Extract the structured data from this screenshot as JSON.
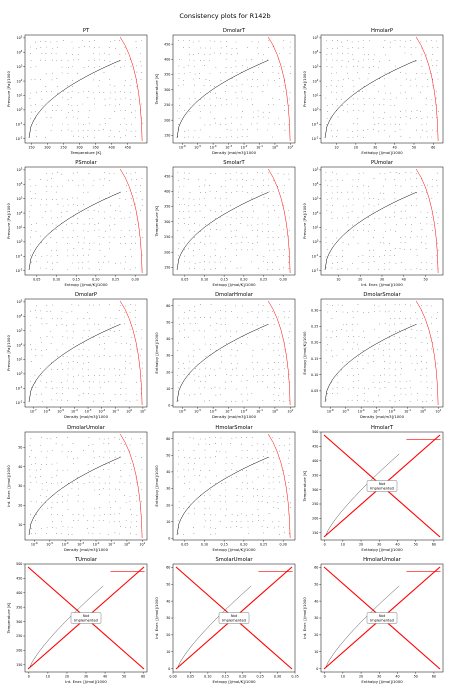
{
  "figure": {
    "suptitle": "Consistency plots for R142b"
  },
  "colors": {
    "curve": "#000000",
    "points": "#000000",
    "boundary": "#ff0000",
    "cross": "#ff0000",
    "frame": "#000000"
  },
  "chart_data": [
    {
      "id": "PT",
      "type": "scatter",
      "title": "PT",
      "xlabel": "Temperature [K]",
      "ylabel": "Pressure [Pa]/1000",
      "xlim": [
        130,
        510
      ],
      "ylim": [
        -2.3,
        5.2
      ],
      "yscale": "log",
      "xticks": [
        "150",
        "200",
        "250",
        "300",
        "350",
        "400",
        "450"
      ],
      "yticks": [
        "10^-2",
        "10^-1",
        "10^0",
        "10^1",
        "10^2",
        "10^3",
        "10^4",
        "10^5"
      ],
      "implemented": true
    },
    {
      "id": "DmolarT",
      "type": "scatter",
      "title": "DmolarT",
      "xlabel": "Density [mol/m3]/1000",
      "ylabel": "Temperature [K]",
      "xlim": [
        -6.6,
        1.3
      ],
      "ylim": [
        125,
        480
      ],
      "xscale": "log",
      "xticks": [
        "10^-6",
        "10^-5",
        "10^-4",
        "10^-3",
        "10^-2",
        "10^-1",
        "10^0",
        "10^1"
      ],
      "yticks": [
        "150",
        "200",
        "250",
        "300",
        "350",
        "400",
        "450"
      ],
      "implemented": true
    },
    {
      "id": "HmolarP",
      "type": "scatter",
      "title": "HmolarP",
      "xlabel": "Enthalpy [J/mol]/1000",
      "ylabel": "Pressure [Pa]/1000",
      "xlim": [
        2,
        65
      ],
      "ylim": [
        -2.3,
        5.2
      ],
      "yscale": "log",
      "xticks": [
        "10",
        "20",
        "30",
        "40",
        "50",
        "60"
      ],
      "yticks": [
        "10^-2",
        "10^-1",
        "10^0",
        "10^1",
        "10^2",
        "10^3",
        "10^4",
        "10^5"
      ],
      "implemented": true
    },
    {
      "id": "PSmolar",
      "type": "scatter",
      "title": "PSmolar",
      "xlabel": "Entropy [J/mol/K]/1000",
      "ylabel": "Pressure [Pa]/1000",
      "xlim": [
        0.02,
        0.33
      ],
      "ylim": [
        -2.3,
        5.2
      ],
      "yscale": "log",
      "xticks": [
        "0.05",
        "0.10",
        "0.15",
        "0.20",
        "0.25",
        "0.30"
      ],
      "yticks": [
        "10^-2",
        "10^-1",
        "10^0",
        "10^1",
        "10^2",
        "10^3",
        "10^4",
        "10^5"
      ],
      "implemented": true
    },
    {
      "id": "SmolarT",
      "type": "scatter",
      "title": "SmolarT",
      "xlabel": "Entropy [J/mol/K]/1000",
      "ylabel": "Temperature [K]",
      "xlim": [
        0.02,
        0.33
      ],
      "ylim": [
        125,
        480
      ],
      "xticks": [
        "0.05",
        "0.10",
        "0.15",
        "0.20",
        "0.25",
        "0.30"
      ],
      "yticks": [
        "150",
        "200",
        "250",
        "300",
        "350",
        "400",
        "450"
      ],
      "implemented": true
    },
    {
      "id": "PUmolar",
      "type": "scatter",
      "title": "PUmolar",
      "xlabel": "Int. Ener. [J/mol]/1000",
      "ylabel": "Pressure [Pa]/1000",
      "xlim": [
        2,
        58
      ],
      "ylim": [
        -2.3,
        5.2
      ],
      "yscale": "log",
      "xticks": [
        "10",
        "20",
        "30",
        "40",
        "50"
      ],
      "yticks": [
        "10^-2",
        "10^-1",
        "10^0",
        "10^1",
        "10^2",
        "10^3",
        "10^4",
        "10^5"
      ],
      "implemented": true
    },
    {
      "id": "DmolarP",
      "type": "scatter",
      "title": "DmolarP",
      "xlabel": "Density [mol/m3]/1000",
      "ylabel": "Pressure [Pa]/1000",
      "xlim": [
        -7.6,
        1.3
      ],
      "ylim": [
        -2.3,
        5.2
      ],
      "xscale": "log",
      "yscale": "log",
      "xticks": [
        "10^-7",
        "10^-6",
        "10^-5",
        "10^-4",
        "10^-3",
        "10^-2",
        "10^-1",
        "10^0",
        "10^1"
      ],
      "yticks": [
        "10^-2",
        "10^-1",
        "10^0",
        "10^1",
        "10^2",
        "10^3",
        "10^4",
        "10^5"
      ],
      "implemented": true
    },
    {
      "id": "DmolarHmolar",
      "type": "scatter",
      "title": "DmolarHmolar",
      "xlabel": "Density [mol/m3]/1000",
      "ylabel": "Enthalpy [J/mol]/1000",
      "xlim": [
        -6.6,
        1.3
      ],
      "ylim": [
        -1,
        64
      ],
      "xscale": "log",
      "xticks": [
        "10^-6",
        "10^-5",
        "10^-4",
        "10^-3",
        "10^-2",
        "10^-1",
        "10^0",
        "10^1"
      ],
      "yticks": [
        "0",
        "10",
        "20",
        "30",
        "40",
        "50",
        "60"
      ],
      "implemented": true
    },
    {
      "id": "DmolarSmolar",
      "type": "scatter",
      "title": "DmolarSmolar",
      "xlabel": "Density [mol/m3]/1000",
      "ylabel": "Entropy [J/mol/K]/1000",
      "xlim": [
        -6.6,
        1.3
      ],
      "ylim": [
        0,
        0.335
      ],
      "xscale": "log",
      "xticks": [
        "10^-6",
        "10^-5",
        "10^-4",
        "10^-3",
        "10^-2",
        "10^-1",
        "10^0",
        "10^1"
      ],
      "yticks": [
        "0.05",
        "0.10",
        "0.15",
        "0.20",
        "0.25",
        "0.30"
      ],
      "implemented": true
    },
    {
      "id": "DmolarUmolar",
      "type": "scatter",
      "title": "DmolarUmolar",
      "xlabel": "Density [mol/m3]/1000",
      "ylabel": "Int. Ener. [J/mol]/1000",
      "xlim": [
        -6.6,
        1.3
      ],
      "ylim": [
        2,
        58
      ],
      "xscale": "log",
      "xticks": [
        "10^-6",
        "10^-5",
        "10^-4",
        "10^-3",
        "10^-2",
        "10^-1",
        "10^0",
        "10^1"
      ],
      "yticks": [
        "10",
        "20",
        "30",
        "40",
        "50"
      ],
      "implemented": true
    },
    {
      "id": "HmolarSmolar",
      "type": "scatter",
      "title": "HmolarSmolar",
      "xlabel": "Entropy [J/mol/K]/1000",
      "ylabel": "Enthalpy [J/mol]/1000",
      "xlim": [
        0.02,
        0.33
      ],
      "ylim": [
        -1,
        64
      ],
      "xticks": [
        "0.05",
        "0.10",
        "0.15",
        "0.20",
        "0.25",
        "0.30"
      ],
      "yticks": [
        "0",
        "10",
        "20",
        "30",
        "40",
        "50",
        "60"
      ],
      "implemented": true
    },
    {
      "id": "HmolarT",
      "type": "scatter",
      "title": "HmolarT",
      "xlabel": "Enthalpy [J/mol]/1000",
      "ylabel": "Temperature [K]",
      "xlim": [
        -2,
        65
      ],
      "ylim": [
        125,
        500
      ],
      "xticks": [
        "0",
        "10",
        "20",
        "30",
        "40",
        "50",
        "60"
      ],
      "yticks": [
        "150",
        "200",
        "250",
        "300",
        "350",
        "400",
        "450",
        "500"
      ],
      "implemented": false,
      "note": "Not\nImplemented"
    },
    {
      "id": "TUmolar",
      "type": "scatter",
      "title": "TUmolar",
      "xlabel": "Int. Ener. [J/mol]/1000",
      "ylabel": "Temperature [K]",
      "xlim": [
        -2,
        62
      ],
      "ylim": [
        125,
        500
      ],
      "xticks": [
        "0",
        "10",
        "20",
        "30",
        "40",
        "50",
        "60"
      ],
      "yticks": [
        "150",
        "200",
        "250",
        "300",
        "350",
        "400",
        "450",
        "500"
      ],
      "implemented": false,
      "note": "Not\nImplemented"
    },
    {
      "id": "SmolarUmolar",
      "type": "scatter",
      "title": "SmolarUmolar",
      "xlabel": "Entropy [J/mol/K]/1000",
      "ylabel": "Int. Ener. [J/mol]/1000",
      "xlim": [
        0,
        0.35
      ],
      "ylim": [
        -2,
        62
      ],
      "xticks": [
        "0.00",
        "0.05",
        "0.10",
        "0.15",
        "0.20",
        "0.25",
        "0.30",
        "0.35"
      ],
      "yticks": [
        "0",
        "10",
        "20",
        "30",
        "40",
        "50",
        "60"
      ],
      "implemented": false,
      "note": "Not\nImplemented"
    },
    {
      "id": "HmolarUmolar",
      "type": "scatter",
      "title": "HmolarUmolar",
      "xlabel": "Enthalpy [J/mol]/1000",
      "ylabel": "Int. Ener. [J/mol]/1000",
      "xlim": [
        -2,
        65
      ],
      "ylim": [
        -2,
        62
      ],
      "xticks": [
        "0",
        "10",
        "20",
        "30",
        "40",
        "50",
        "60"
      ],
      "yticks": [
        "0",
        "10",
        "20",
        "30",
        "40",
        "50",
        "60"
      ],
      "implemented": false,
      "note": "Not\nImplemented"
    }
  ]
}
